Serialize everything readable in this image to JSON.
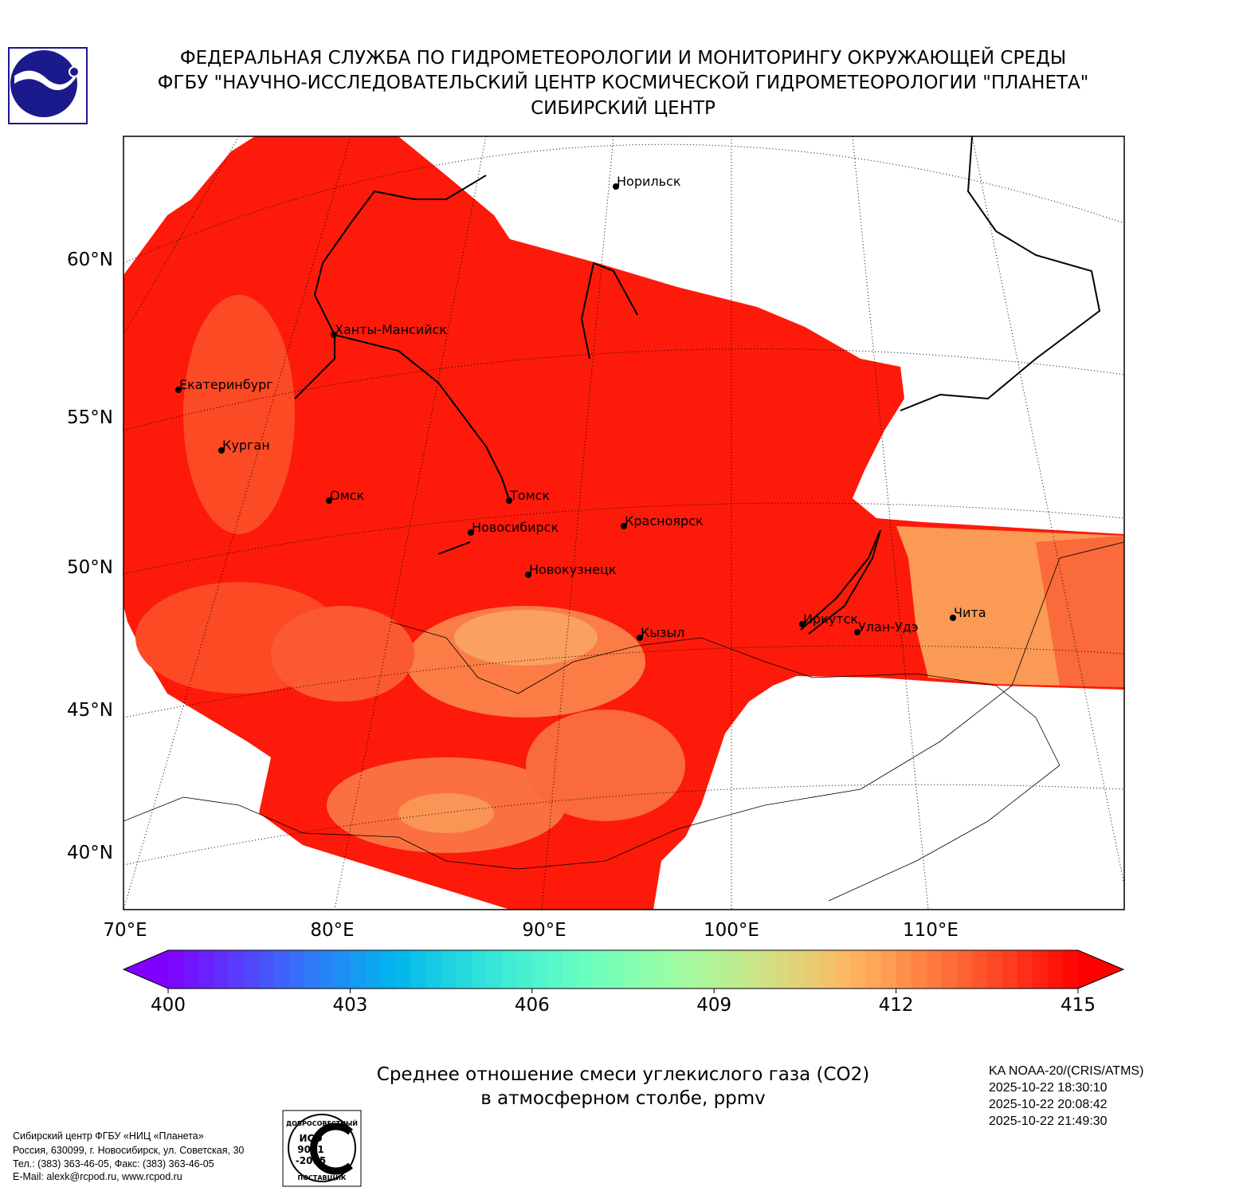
{
  "header": {
    "lines": [
      "ФЕДЕРАЛЬНАЯ СЛУЖБА ПО ГИДРОМЕТЕОРОЛОГИИ И МОНИТОРИНГУ ОКРУЖАЮЩЕЙ СРЕДЫ",
      "ФГБУ \"НАУЧНО-ИССЛЕДОВАТЕЛЬСКИЙ ЦЕНТР КОСМИЧЕСКОЙ ГИДРОМЕТЕОРОЛОГИИ \"ПЛАНЕТА\"",
      "СИБИРСКИЙ ЦЕНТР"
    ]
  },
  "map": {
    "lat_labels": [
      "60°N",
      "55°N",
      "50°N",
      "45°N",
      "40°N"
    ],
    "lon_labels": [
      "70°E",
      "80°E",
      "90°E",
      "100°E",
      "110°E"
    ],
    "cities": [
      "Норильск",
      "Ханты-Мансийск",
      "Екатеринбург",
      "Курган",
      "Омск",
      "Томск",
      "Новосибирск",
      "Красноярск",
      "Новокузнецк",
      "Иркутск",
      "Кызыл",
      "Улан-Удэ",
      "Чита"
    ]
  },
  "colorbar": {
    "range": [
      400,
      415
    ],
    "ticks": [
      400,
      403,
      406,
      409,
      412,
      415
    ]
  },
  "caption": [
    "Среднее отношение смеси углекислого газа (CO2)",
    "в атмосферном столбе, ppmv"
  ],
  "satellite": [
    "KA NOAA-20/(CRIS/ATMS)",
    "2025-10-22 18:30:10",
    "2025-10-22 20:08:42",
    "2025-10-22 21:49:30"
  ],
  "footer": [
    "Сибирский центр ФГБУ «НИЦ «Планета»",
    "Россия, 630099, г. Новосибирск, ул. Советская, 30",
    "Тел.: (383) 363-46-05, Факс: (383) 363-46-05",
    "E-Mail: alexk@rcpod.ru, www.rcpod.ru"
  ],
  "iso_logo": {
    "top": "ДОБРОСОВЕСТНЫЙ",
    "lines": [
      "ИСО",
      "9001",
      "-2015"
    ],
    "bottom": "ПОСТАВЩИК"
  }
}
